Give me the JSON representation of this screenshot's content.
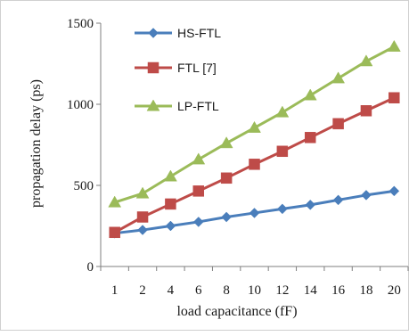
{
  "chart_data": {
    "type": "line",
    "title": "",
    "xlabel": "load capacitance  (fF)",
    "ylabel": "propagation delay  (ps)",
    "categories": [
      "1",
      "2",
      "4",
      "6",
      "8",
      "10",
      "12",
      "14",
      "16",
      "18",
      "20"
    ],
    "ylim": [
      0,
      1500
    ],
    "yticks": [
      "0",
      "500",
      "1000",
      "1500"
    ],
    "grid": false,
    "legend_position": "top-left",
    "series": [
      {
        "name": "HS-FTL",
        "color": "#4a7ebb",
        "marker": "diamond",
        "values": [
          205,
          225,
          250,
          275,
          305,
          330,
          355,
          380,
          410,
          440,
          465
        ]
      },
      {
        "name": "FTL [7]",
        "color": "#be4b48",
        "marker": "square",
        "values": [
          210,
          305,
          385,
          465,
          545,
          630,
          710,
          795,
          880,
          960,
          1040
        ]
      },
      {
        "name": "LP-FTL",
        "color": "#9bbb59",
        "marker": "triangle",
        "values": [
          395,
          450,
          555,
          660,
          760,
          855,
          950,
          1055,
          1160,
          1265,
          1355
        ]
      }
    ]
  }
}
